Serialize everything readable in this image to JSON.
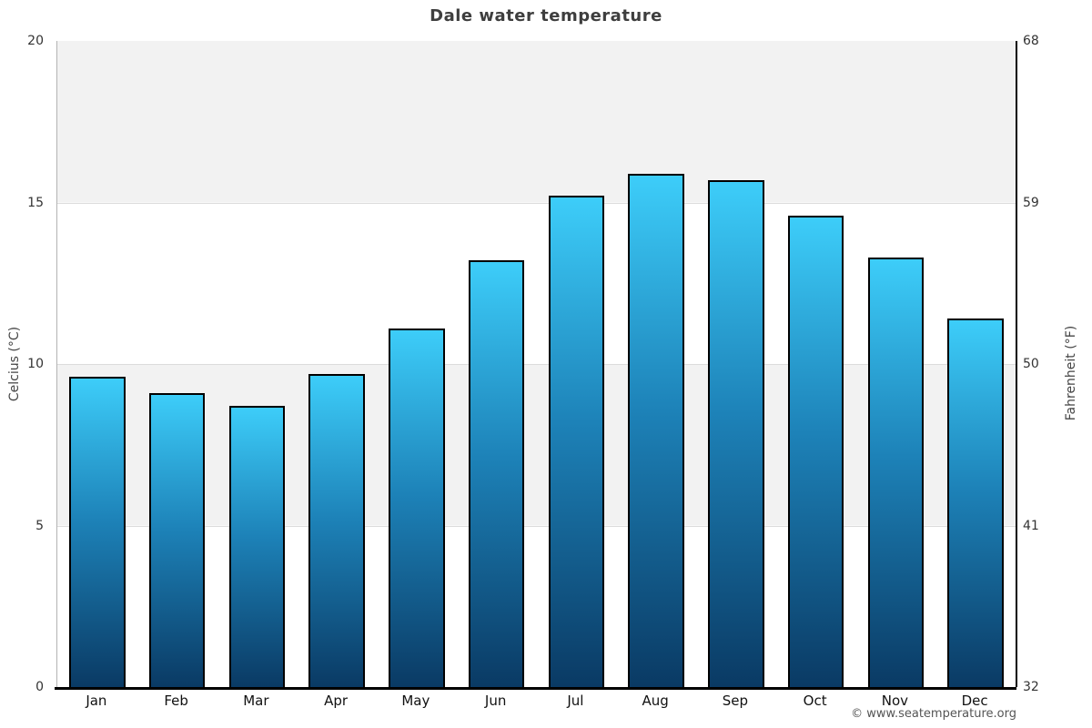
{
  "title": "Dale water temperature",
  "copyright": "© www.seatemperature.org",
  "chart_data": {
    "type": "bar",
    "title": "Dale water temperature",
    "categories": [
      "Jan",
      "Feb",
      "Mar",
      "Apr",
      "May",
      "Jun",
      "Jul",
      "Aug",
      "Sep",
      "Oct",
      "Nov",
      "Dec"
    ],
    "values": [
      9.6,
      9.1,
      8.7,
      9.7,
      11.1,
      13.2,
      15.2,
      15.9,
      15.7,
      14.6,
      13.3,
      11.4
    ],
    "unit": "°C",
    "ylabel_left": "Celcius (°C)",
    "ylabel_right": "Fahrenheit (°F)",
    "yticks_celsius": [
      0,
      5,
      10,
      15,
      20
    ],
    "yticks_fahrenheit": [
      32,
      41,
      50,
      59,
      68
    ],
    "ylim": [
      0,
      20
    ],
    "grid": "horizontal-bands",
    "band_ranges_celsius": [
      [
        5,
        10
      ],
      [
        15,
        20
      ]
    ],
    "legend": "none",
    "colors": {
      "band_gray": "#f2f2f2",
      "plot_white": "#ffffff",
      "gridline": "#dcdcdc",
      "bar_gradient_top": "#3dcdf9",
      "bar_gradient_mid": "#1d82b8",
      "bar_gradient_bottom": "#0a3a64",
      "bar_border": "#000000",
      "axis_left_line": "#b3b3b3",
      "axis_bottom_line": "#000000",
      "title_text": "#3e3e3e",
      "tick_text": "#333333",
      "copyright_text": "#555555"
    }
  }
}
